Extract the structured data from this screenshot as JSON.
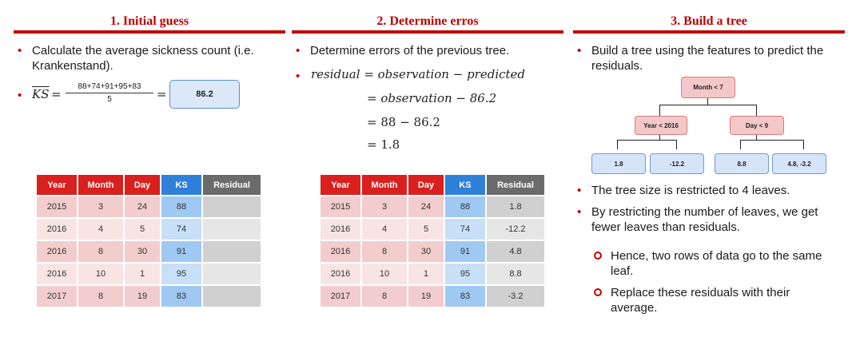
{
  "sections": [
    {
      "title": "1. Initial guess",
      "bullets": [
        "Calculate the average sickness count (i.e. Krankenstand)."
      ],
      "formula": {
        "lhs": "KS",
        "numerator": "88+74+91+95+83",
        "denominator": "5",
        "result": "86.2"
      }
    },
    {
      "title": "2. Determine erros",
      "bullets": [
        "Determine errors of the previous tree."
      ],
      "equations": [
        "residual = observation − predicted",
        "= observation − 86.2",
        "= 88 − 86.2",
        "= 1.8"
      ]
    },
    {
      "title": "3. Build a tree",
      "bullets": [
        "Build a tree using the features to predict the residuals.",
        "The tree size is restricted to 4 leaves.",
        "By restricting the number of leaves, we get fewer leaves than residuals."
      ],
      "subbullets": [
        "Hence, two rows of data go to the same leaf.",
        "Replace these residuals with their average."
      ],
      "tree": {
        "root": "Month < 7",
        "left": "Year < 2016",
        "right": "Day < 9",
        "leaves": [
          "1.8",
          "-12.2",
          "8.8",
          "4.8, -3.2"
        ]
      }
    }
  ],
  "table": {
    "headers": [
      "Year",
      "Month",
      "Day",
      "KS",
      "Residual"
    ],
    "rows": [
      {
        "year": "2015",
        "month": "3",
        "day": "24",
        "ks": "88",
        "residual": "1.8"
      },
      {
        "year": "2016",
        "month": "4",
        "day": "5",
        "ks": "74",
        "residual": "-12.2"
      },
      {
        "year": "2016",
        "month": "8",
        "day": "30",
        "ks": "91",
        "residual": "4.8"
      },
      {
        "year": "2016",
        "month": "10",
        "day": "1",
        "ks": "95",
        "residual": "8.8"
      },
      {
        "year": "2017",
        "month": "8",
        "day": "19",
        "ks": "83",
        "residual": "-3.2"
      }
    ],
    "empty_residual": ""
  },
  "colors": {
    "accent": "#c00000",
    "header_red": "#d9201e",
    "header_blue": "#2f80d9",
    "header_gray": "#6b6b6b"
  }
}
